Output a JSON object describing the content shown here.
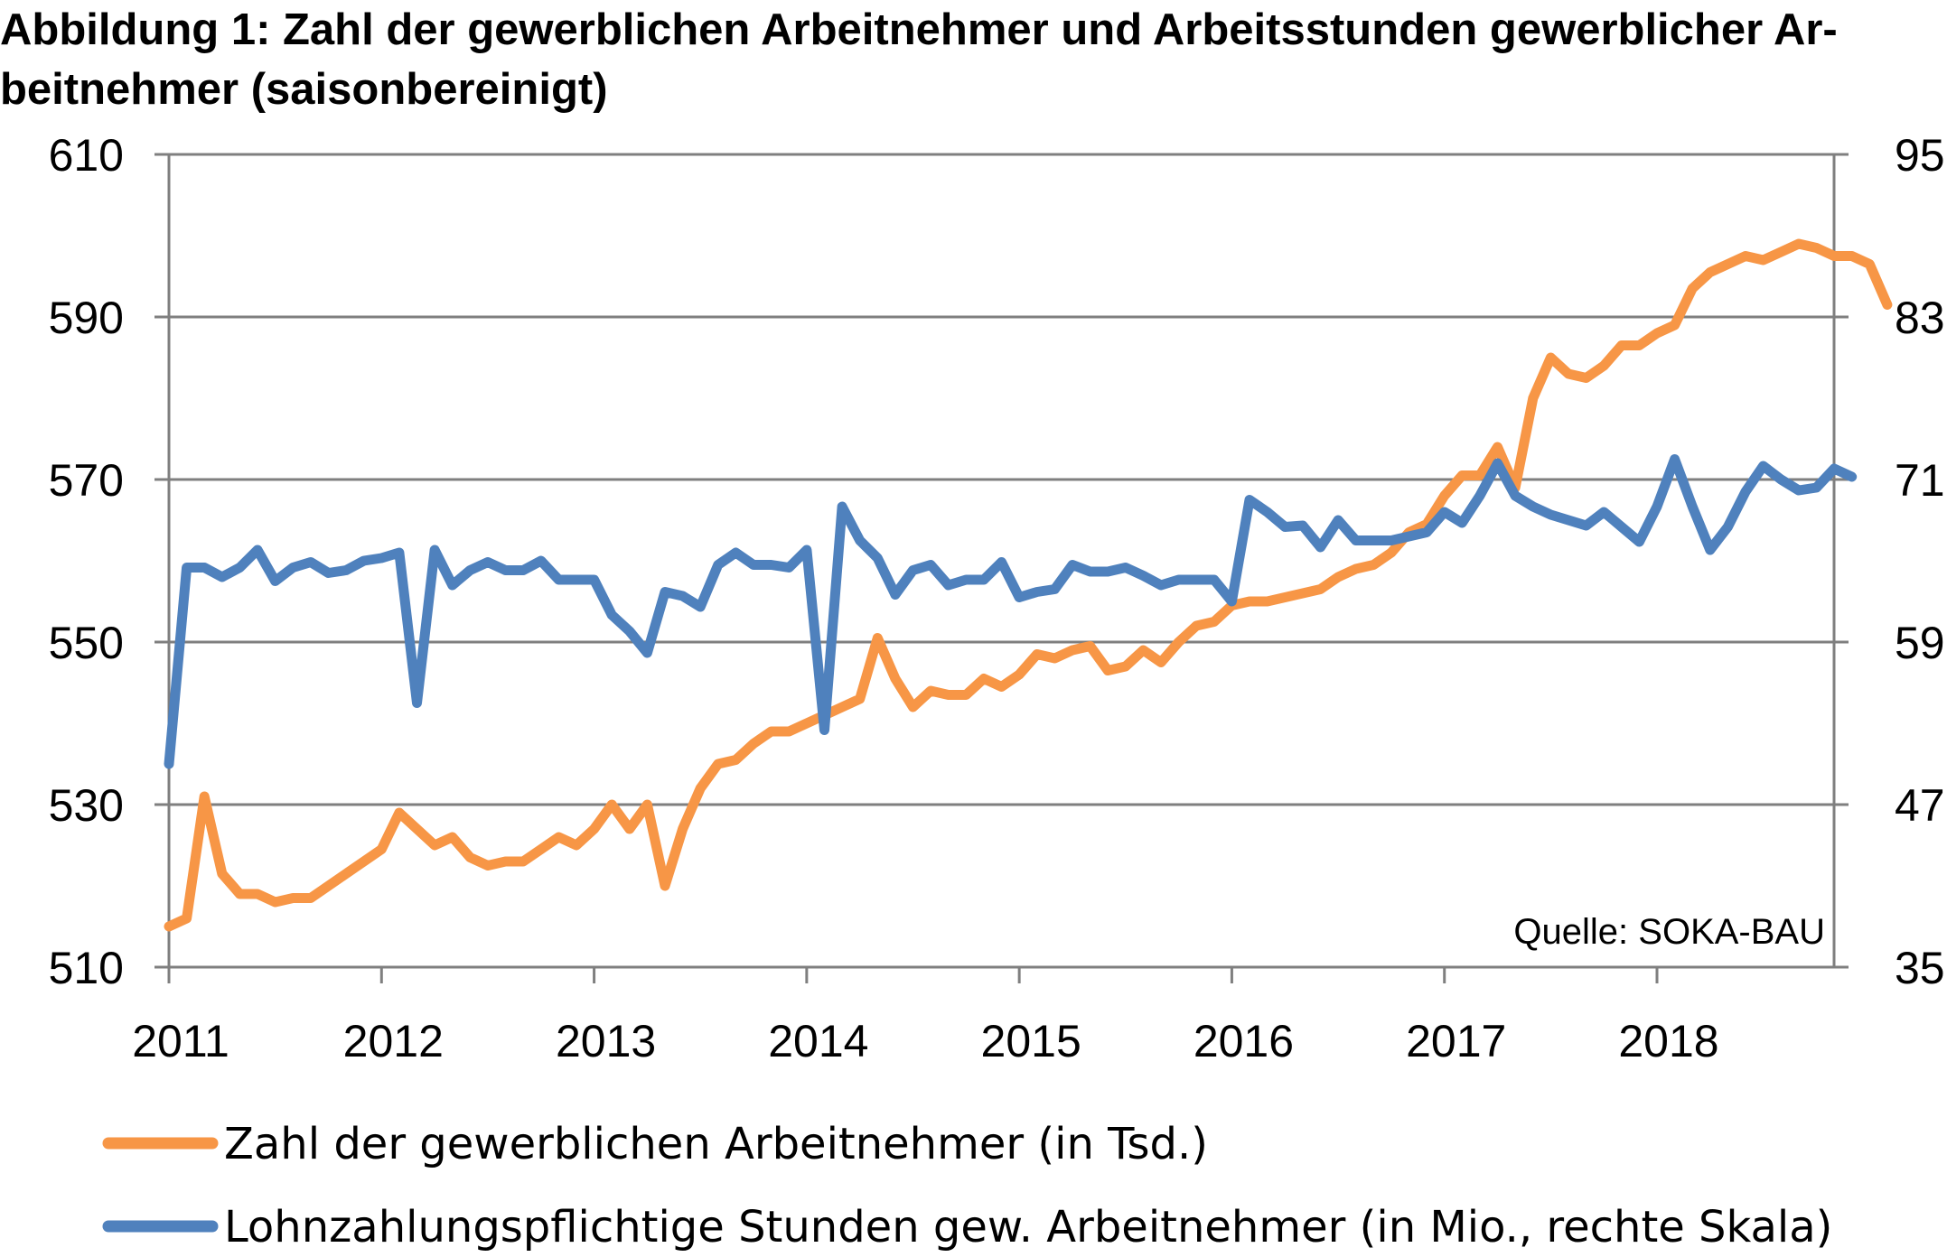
{
  "title": "Abbildung 1: Zahl der gewerblichen Arbeitnehmer und Arbeitsstunden gewerblicher Ar-beitnehmer (saisonbereinigt)",
  "source_note": "Quelle: SOKA-BAU",
  "colors": {
    "series_left": "#F79646",
    "series_right": "#4F81BD",
    "grid": "#7f7f7f"
  },
  "chart_data": {
    "type": "line",
    "grid": true,
    "legend_position": "bottom",
    "x_range": [
      2011.0,
      2018.833
    ],
    "x_ticks": [
      2011,
      2012,
      2013,
      2014,
      2015,
      2016,
      2017,
      2018
    ],
    "y_left": {
      "range": [
        510,
        610
      ],
      "ticks": [
        510,
        530,
        550,
        570,
        590,
        610
      ]
    },
    "y_right": {
      "range": [
        35,
        95
      ],
      "ticks": [
        35,
        47,
        59,
        71,
        83,
        95
      ]
    },
    "series": [
      {
        "name": "Zahl der gewerblichen Arbeitnehmer (in Tsd.)",
        "axis": "left",
        "x_start": 2011.0,
        "step_months": 1,
        "values": [
          515,
          516,
          531,
          521.5,
          519,
          519,
          518,
          518.5,
          518.5,
          520,
          521.5,
          523,
          524.5,
          529,
          527,
          525,
          526,
          523.5,
          522.5,
          523,
          523,
          524.5,
          526,
          525,
          527,
          530,
          527,
          530,
          520,
          527,
          532,
          535,
          535.5,
          537.5,
          539,
          539,
          540,
          541,
          542,
          543,
          550.5,
          545.5,
          542,
          544,
          543.5,
          543.5,
          545.5,
          544.5,
          546,
          548.5,
          548,
          549,
          549.5,
          546.5,
          547,
          549,
          547.5,
          550,
          552,
          552.5,
          554.5,
          555,
          555,
          555.5,
          556,
          556.5,
          558,
          559,
          559.5,
          561,
          563.5,
          564.5,
          568,
          570.5,
          570.5,
          574,
          569,
          580,
          585,
          583,
          582.5,
          584,
          586.5,
          586.5,
          588,
          589,
          593.5,
          595.5,
          596.5,
          597.5,
          597,
          598,
          599,
          598.5,
          597.5,
          597.5,
          596.5,
          591.5
        ]
      },
      {
        "name": "Lohnzahlungspflichtige Stunden gew. Arbeitnehmer (in Mio., rechte Skala)",
        "axis": "right",
        "x_start": 2011.0,
        "step_months": 1,
        "values": [
          50,
          64.5,
          64.5,
          63.8,
          64.5,
          65.8,
          63.5,
          64.5,
          64.9,
          64.1,
          64.3,
          65,
          65.2,
          65.6,
          54.5,
          65.8,
          63.2,
          64.3,
          64.9,
          64.3,
          64.3,
          65,
          63.6,
          63.6,
          63.6,
          61,
          59.8,
          58.2,
          62.7,
          62.4,
          61.6,
          64.7,
          65.6,
          64.7,
          64.7,
          64.5,
          65.8,
          52.5,
          69,
          66.5,
          65.2,
          62.5,
          64.3,
          64.7,
          63.2,
          63.6,
          63.6,
          64.9,
          62.3,
          62.7,
          62.9,
          64.7,
          64.2,
          64.2,
          64.5,
          63.9,
          63.2,
          63.6,
          63.6,
          63.6,
          62,
          69.5,
          68.6,
          67.5,
          67.6,
          66,
          68,
          66.5,
          66.5,
          66.5,
          66.8,
          67.1,
          68.6,
          67.8,
          69.8,
          72.2,
          69.8,
          69,
          68.4,
          68,
          67.6,
          68.6,
          67.5,
          66.4,
          69,
          72.5,
          69,
          65.8,
          67.5,
          70.1,
          72,
          71,
          70.2,
          70.4,
          71.8,
          71.2
        ]
      }
    ]
  }
}
